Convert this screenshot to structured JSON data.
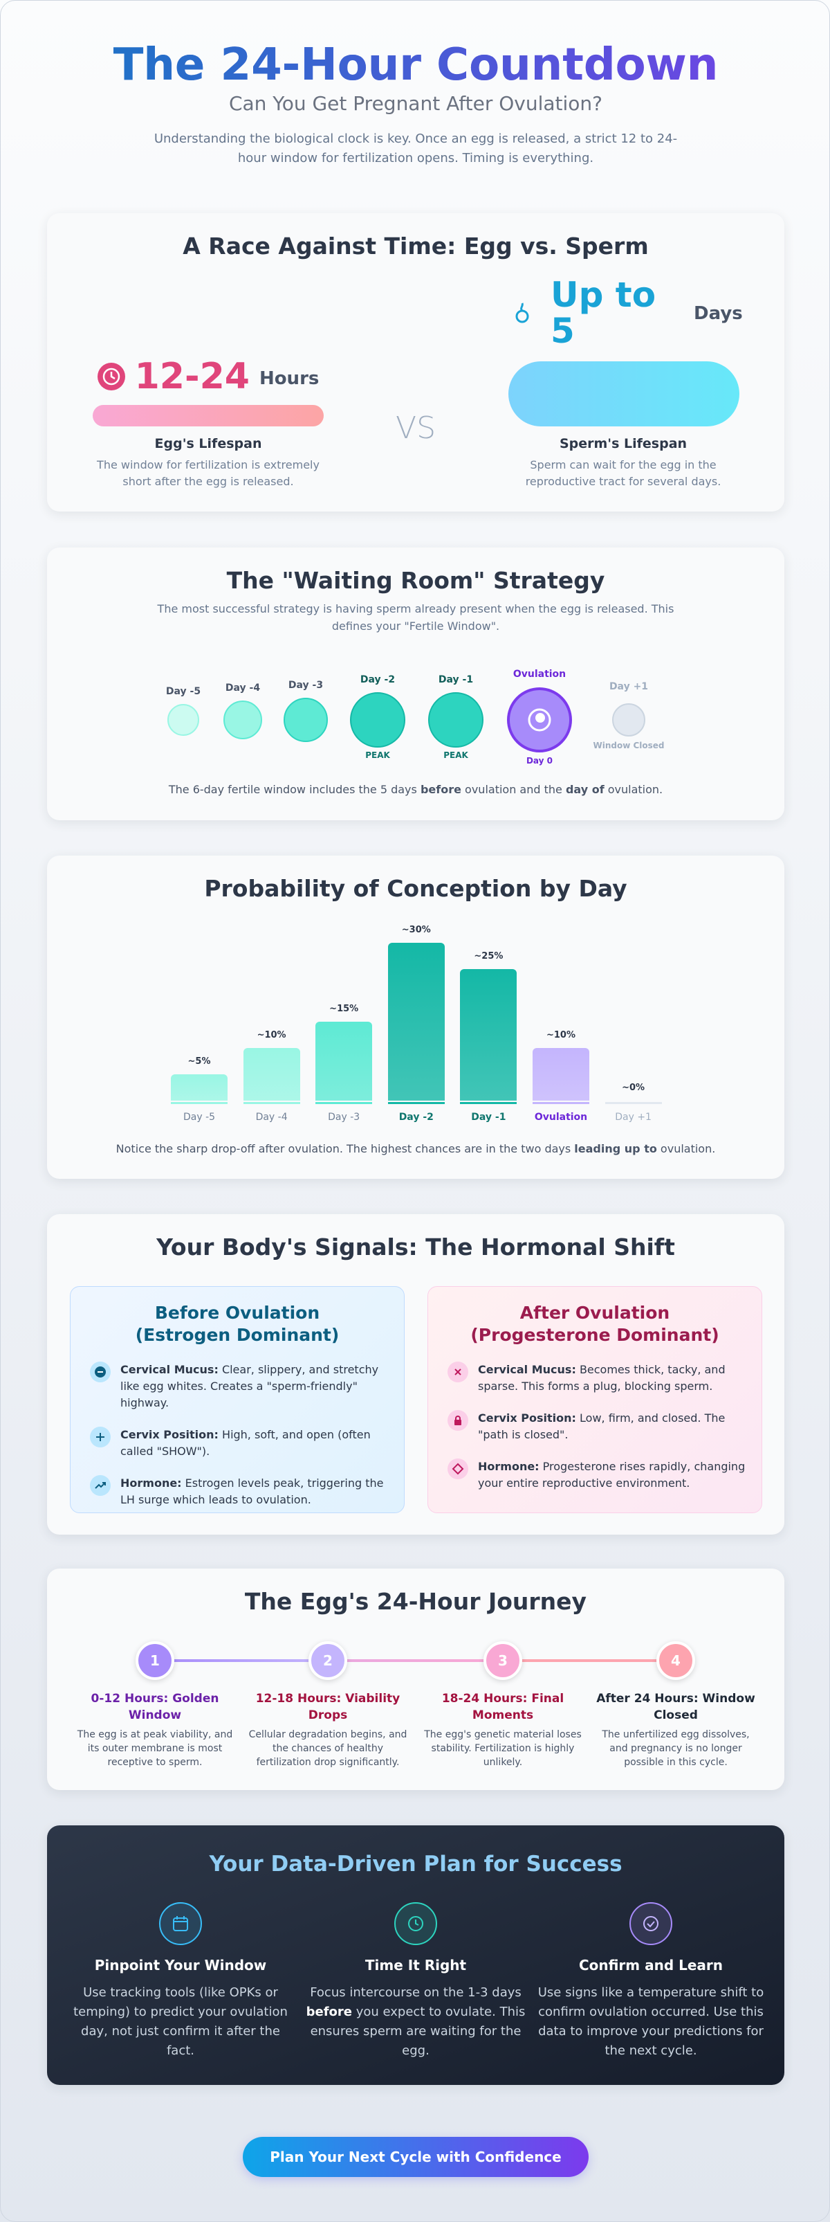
{
  "header": {
    "title": "The 24-Hour Countdown",
    "subtitle": "Can You Get Pregnant After Ovulation?",
    "description": "Understanding the biological clock is key. Once an egg is released, a strict 12 to 24-hour window for fertilization opens. Timing is everything."
  },
  "lifespan": {
    "title": "A Race Against Time: Egg vs. Sperm",
    "egg": {
      "value": "12-24",
      "unit": "Hours",
      "label": "Egg's Lifespan",
      "description": "The window for fertilization is extremely short after the egg is released."
    },
    "versus": "VS",
    "sperm": {
      "value": "Up to 5",
      "unit": "Days",
      "label": "Sperm's Lifespan",
      "description": "Sperm can wait for the egg in the reproductive tract for several days."
    }
  },
  "waiting_room": {
    "title": "The \"Waiting Room\" Strategy",
    "description": "The most successful strategy is having sperm already present when the egg is released. This defines your \"Fertile Window\".",
    "days": [
      {
        "label": "Day -5"
      },
      {
        "label": "Day -4"
      },
      {
        "label": "Day -3"
      },
      {
        "label": "Day -2",
        "note": "PEAK"
      },
      {
        "label": "Day -1",
        "note": "PEAK"
      },
      {
        "label": "Ovulation",
        "note": "Day 0"
      },
      {
        "label": "Day +1",
        "note": "Window Closed"
      }
    ],
    "summary": [
      "The 6-day fertile window includes the 5 days ",
      "before",
      " ovulation and the ",
      "day of",
      " ovulation."
    ]
  },
  "chart_data": {
    "type": "bar",
    "title": "Probability of Conception by Day",
    "categories": [
      "Day -5",
      "Day -4",
      "Day -3",
      "Day -2",
      "Day -1",
      "Ovulation",
      "Day +1"
    ],
    "values": [
      5,
      10,
      15,
      30,
      25,
      10,
      0
    ],
    "value_labels": [
      "~5%",
      "~10%",
      "~15%",
      "~30%",
      "~25%",
      "~10%",
      "~0%"
    ],
    "colors": [
      "#99f6e4",
      "#99f6e4",
      "#5eead4",
      "#14b8a6",
      "#14b8a6",
      "#c4b5fd",
      "#e2e8f0"
    ],
    "caption": [
      "Notice the sharp drop-off after ovulation. The highest chances are in the two days ",
      "leading up to",
      " ovulation."
    ]
  },
  "hormones": {
    "title": "Your Body's Signals: The Hormonal Shift",
    "before": {
      "title": "Before Ovulation",
      "subtitle": "(Estrogen Dominant)",
      "items": [
        {
          "label": "Cervical Mucus:",
          "text": "Clear, slippery, and stretchy like egg whites. Creates a \"sperm-friendly\" highway."
        },
        {
          "label": "Cervix Position:",
          "text": "High, soft, and open (often called \"SHOW\")."
        },
        {
          "label": "Hormone:",
          "text": "Estrogen levels peak, triggering the LH surge which leads to ovulation."
        }
      ]
    },
    "after": {
      "title": "After Ovulation",
      "subtitle": "(Progesterone Dominant)",
      "items": [
        {
          "label": "Cervical Mucus:",
          "text": "Becomes thick, tacky, and sparse. This forms a plug, blocking sperm."
        },
        {
          "label": "Cervix Position:",
          "text": "Low, firm, and closed. The \"path is closed\"."
        },
        {
          "label": "Hormone:",
          "text": "Progesterone rises rapidly, changing your entire reproductive environment."
        }
      ]
    }
  },
  "journey": {
    "title": "The Egg's 24-Hour Journey",
    "steps": [
      {
        "number": 1,
        "title": "0-12 Hours: Golden Window",
        "text": "The egg is at peak viability, and its outer membrane is most receptive to sperm."
      },
      {
        "number": 2,
        "title": "12-18 Hours: Viability Drops",
        "text": "Cellular degradation begins, and the chances of healthy fertilization drop significantly."
      },
      {
        "number": 3,
        "title": "18-24 Hours: Final Moments",
        "text": "The egg's genetic material loses stability. Fertilization is highly unlikely."
      },
      {
        "number": 4,
        "title": "After 24 Hours: Window Closed",
        "text": "The unfertilized egg dissolves, and pregnancy is no longer possible in this cycle."
      }
    ]
  },
  "plan": {
    "title": "Your Data-Driven Plan for Success",
    "items": [
      {
        "title": "Pinpoint Your Window",
        "text": [
          "Use tracking tools (like OPKs or temping) to predict your ovulation day, not just confirm it after the fact."
        ]
      },
      {
        "title": "Time It Right",
        "text": [
          "Focus intercourse on the 1-3 days ",
          "before",
          " you expect to ovulate. This ensures sperm are waiting for the egg."
        ]
      },
      {
        "title": "Confirm and Learn",
        "text": [
          "Use signs like a temperature shift to confirm ovulation occurred. Use this data to improve your predictions for the next cycle."
        ]
      }
    ]
  },
  "cta": "Plan Your Next Cycle with Confidence"
}
